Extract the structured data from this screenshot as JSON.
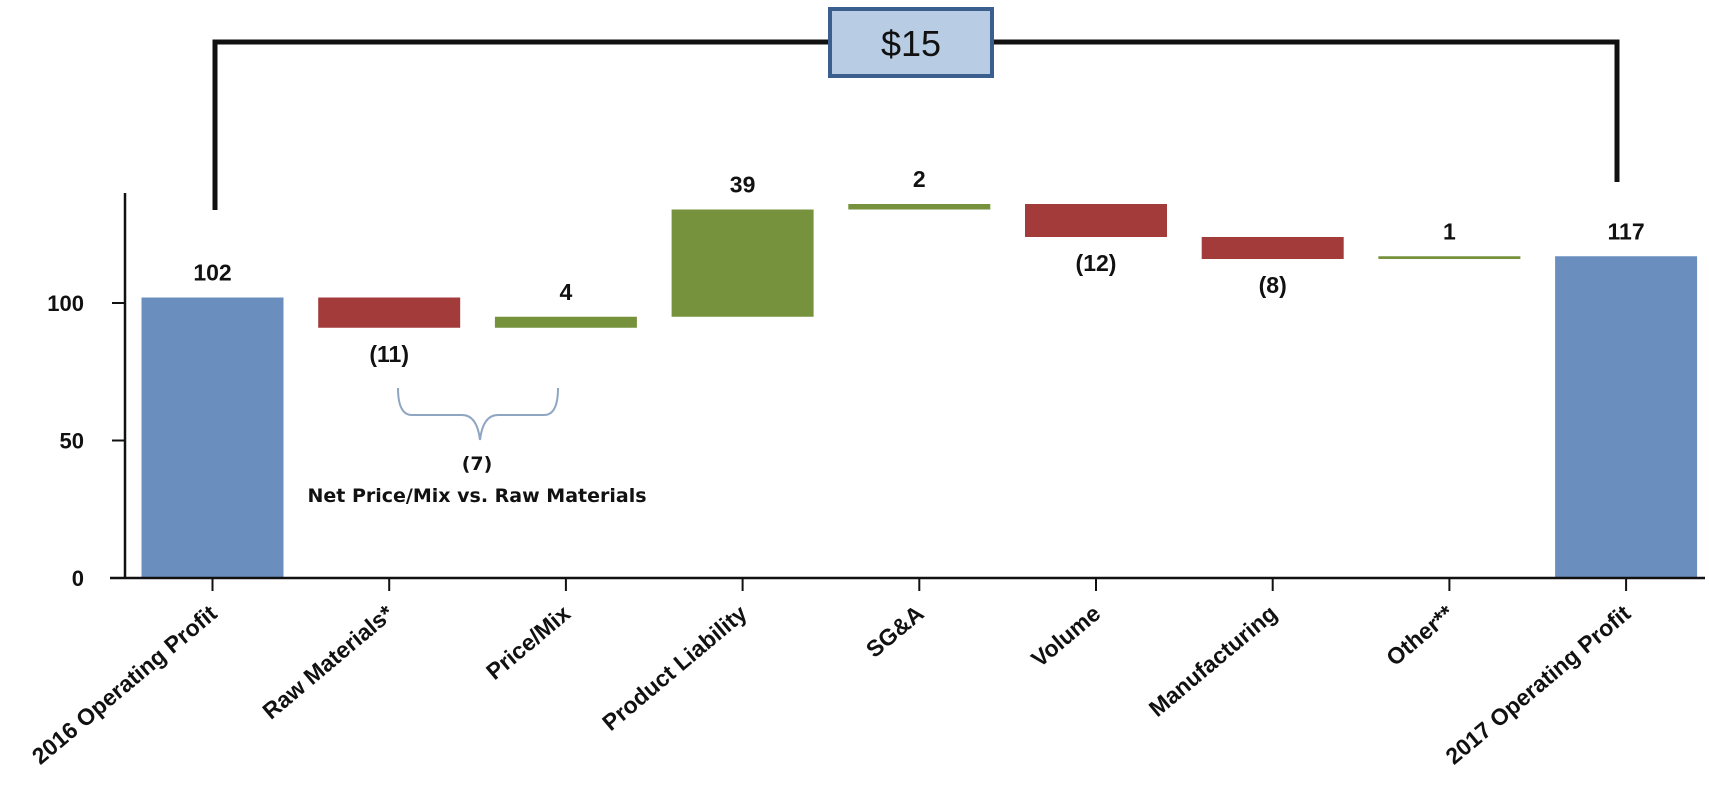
{
  "chart_data": {
    "type": "bar",
    "subtype": "waterfall",
    "title": "",
    "xlabel": "",
    "ylabel": "",
    "ylim": [
      0,
      140
    ],
    "yticks": [
      0,
      50,
      100
    ],
    "grid": false,
    "categories": [
      "2016 Operating Profit",
      "Raw Materials*",
      "Price/Mix",
      "Product Liability",
      "SG&A",
      "Volume",
      "Manufacturing",
      "Other**",
      "2017 Operating Profit"
    ],
    "steps": [
      {
        "category": "2016 Operating Profit",
        "kind": "total",
        "start": 0,
        "end": 102,
        "label": "102"
      },
      {
        "category": "Raw Materials*",
        "kind": "decrease",
        "start": 102,
        "end": 91,
        "label": "(11)"
      },
      {
        "category": "Price/Mix",
        "kind": "increase",
        "start": 91,
        "end": 95,
        "label": "4"
      },
      {
        "category": "Product Liability",
        "kind": "increase",
        "start": 95,
        "end": 134,
        "label": "39"
      },
      {
        "category": "SG&A",
        "kind": "increase",
        "start": 134,
        "end": 136,
        "label": "2"
      },
      {
        "category": "Volume",
        "kind": "decrease",
        "start": 136,
        "end": 124,
        "label": "(12)"
      },
      {
        "category": "Manufacturing",
        "kind": "decrease",
        "start": 124,
        "end": 116,
        "label": "(8)"
      },
      {
        "category": "Other**",
        "kind": "increase",
        "start": 116,
        "end": 117,
        "label": "1"
      },
      {
        "category": "2017 Operating Profit",
        "kind": "total",
        "start": 0,
        "end": 117,
        "label": "117"
      }
    ],
    "annotations": {
      "net_value": "(7)",
      "net_label": "Net Price/Mix vs. Raw Materials",
      "total_change": "$15"
    },
    "colors": {
      "total": "#6a8fbf",
      "increase": "#77923d",
      "decrease": "#a33b3b",
      "total_box_fill": "#b8cce4",
      "total_box_border": "#3a5f8f"
    }
  }
}
